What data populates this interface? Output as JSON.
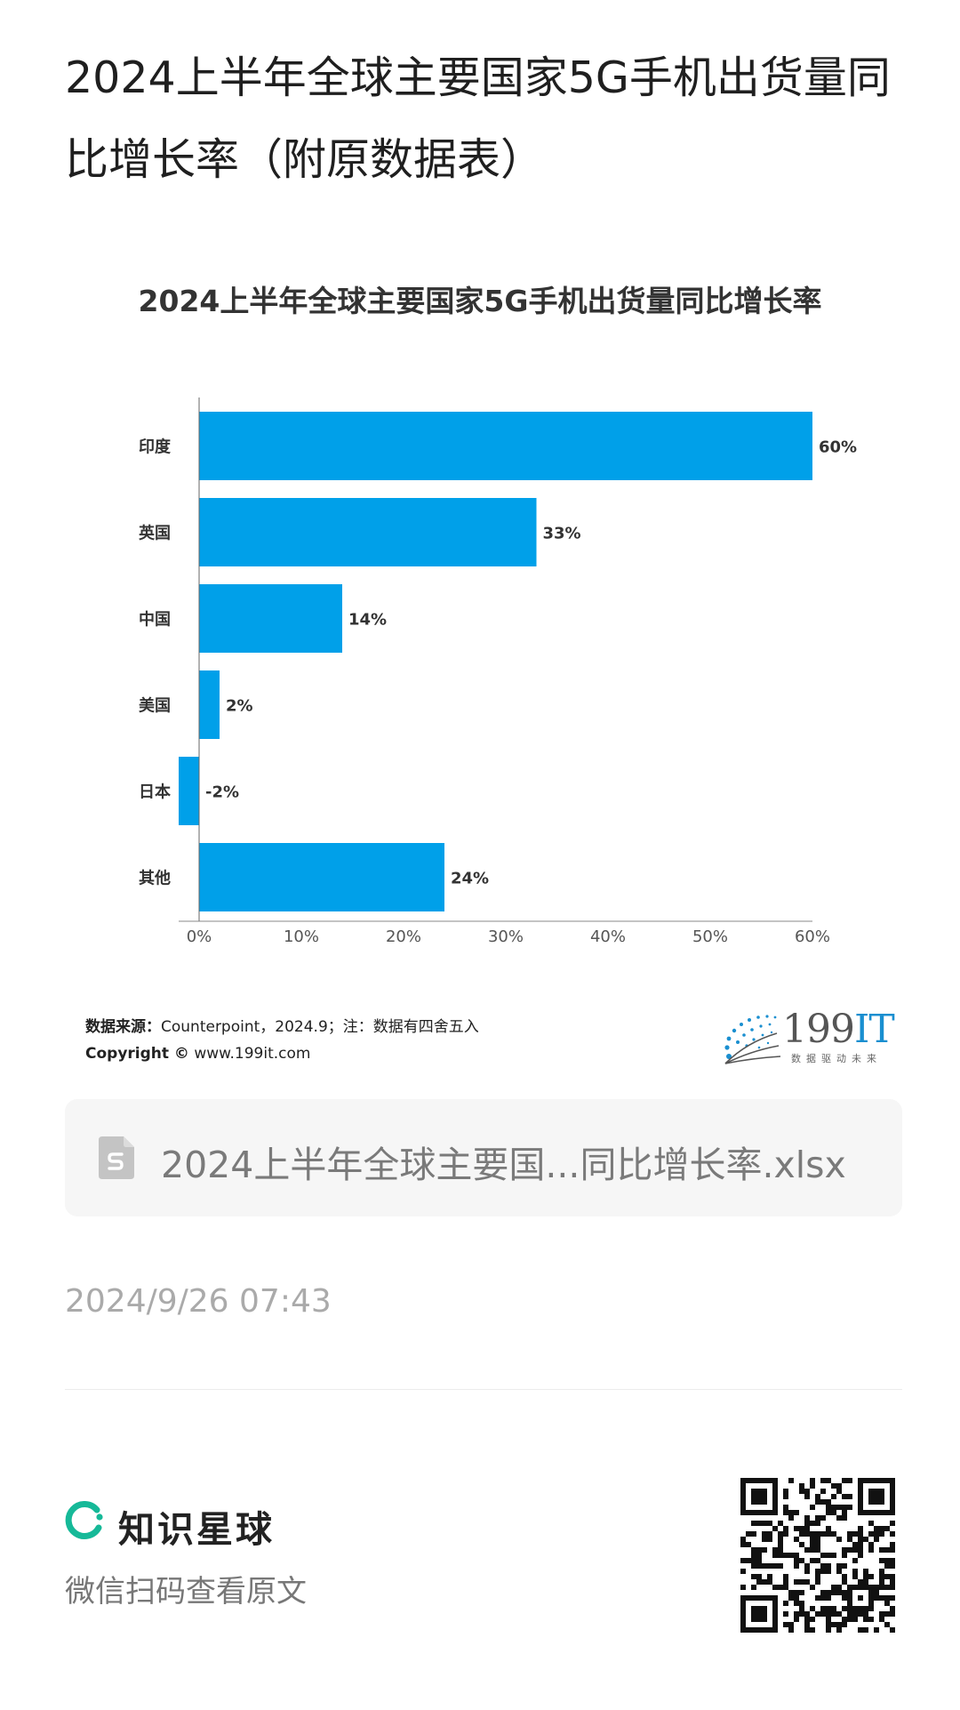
{
  "page": {
    "title": "2024上半年全球主要国家5G手机出货量同比增长率（附原数据表）",
    "timestamp": "2024/9/26 07:43"
  },
  "chart_data": {
    "type": "bar",
    "orientation": "horizontal",
    "title": "2024上半年全球主要国家5G手机出货量同比增长率",
    "categories": [
      "印度",
      "英国",
      "中国",
      "美国",
      "日本",
      "其他"
    ],
    "values": [
      60,
      33,
      14,
      2,
      -2,
      24
    ],
    "value_labels": [
      "60%",
      "33%",
      "14%",
      "2%",
      "-2%",
      "24%"
    ],
    "xticks": [
      "0%",
      "10%",
      "20%",
      "30%",
      "40%",
      "50%",
      "60%"
    ],
    "xlim": [
      -2,
      60
    ],
    "xlabel": "",
    "ylabel": "",
    "grid": false,
    "legend": "none",
    "bar_color": "#00a0e9"
  },
  "source": {
    "label": "数据来源：",
    "text": "Counterpoint，2024.9；注：数据有四舍五入",
    "copyright_label": "Copyright ©",
    "copyright_url": "www.199it.com"
  },
  "logo": {
    "name_digits": "199",
    "name_letters": "IT",
    "tagline": "数据驱动未来"
  },
  "file": {
    "name": "2024上半年全球主要国...同比增长率.xlsx",
    "icon": "spreadsheet-file-icon"
  },
  "footer": {
    "brand_name": "知识星球",
    "brand_icon": "zsxq-logo-icon",
    "brand_color": "#16b998",
    "scan_text": "微信扫码查看原文",
    "qr_icon": "qr-code-icon"
  }
}
